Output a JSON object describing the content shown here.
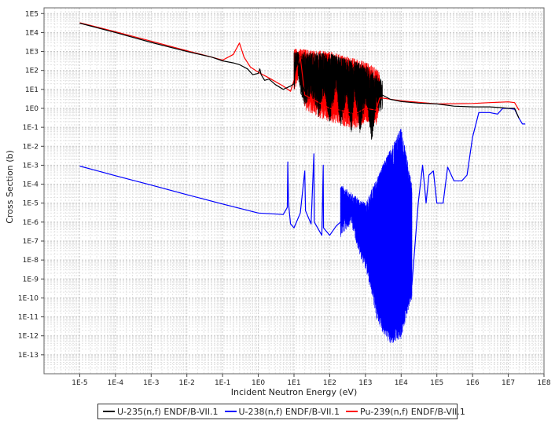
{
  "chart_data": {
    "type": "line",
    "title": "",
    "xlabel": "Incident Neutron Energy (eV)",
    "ylabel": "Cross Section (b)",
    "xscale": "log",
    "yscale": "log",
    "xlim": [
      1e-06,
      100000000.0
    ],
    "ylim": [
      1e-14,
      200000.0
    ],
    "x_ticks": [
      {
        "value": 1e-05,
        "label": "1E-5"
      },
      {
        "value": 0.0001,
        "label": "1E-4"
      },
      {
        "value": 0.001,
        "label": "1E-3"
      },
      {
        "value": 0.01,
        "label": "1E-2"
      },
      {
        "value": 0.1,
        "label": "1E-1"
      },
      {
        "value": 1.0,
        "label": "1E0"
      },
      {
        "value": 10.0,
        "label": "1E1"
      },
      {
        "value": 100.0,
        "label": "1E2"
      },
      {
        "value": 1000.0,
        "label": "1E3"
      },
      {
        "value": 10000.0,
        "label": "1E4"
      },
      {
        "value": 100000.0,
        "label": "1E5"
      },
      {
        "value": 1000000.0,
        "label": "1E6"
      },
      {
        "value": 10000000.0,
        "label": "1E7"
      },
      {
        "value": 100000000.0,
        "label": "1E8"
      }
    ],
    "y_ticks": [
      {
        "value": 100000.0,
        "label": "1E5"
      },
      {
        "value": 10000.0,
        "label": "1E4"
      },
      {
        "value": 1000.0,
        "label": "1E3"
      },
      {
        "value": 100.0,
        "label": "1E2"
      },
      {
        "value": 10.0,
        "label": "1E1"
      },
      {
        "value": 1.0,
        "label": "1E0"
      },
      {
        "value": 0.1,
        "label": "1E-1"
      },
      {
        "value": 0.01,
        "label": "1E-2"
      },
      {
        "value": 0.001,
        "label": "1E-3"
      },
      {
        "value": 0.0001,
        "label": "1E-4"
      },
      {
        "value": 1e-05,
        "label": "1E-5"
      },
      {
        "value": 1e-06,
        "label": "1E-6"
      },
      {
        "value": 1e-07,
        "label": "1E-7"
      },
      {
        "value": 1e-08,
        "label": "1E-8"
      },
      {
        "value": 1e-09,
        "label": "1E-9"
      },
      {
        "value": 1e-10,
        "label": "1E-10"
      },
      {
        "value": 1e-11,
        "label": "1E-11"
      },
      {
        "value": 1e-12,
        "label": "1E-12"
      },
      {
        "value": 1e-13,
        "label": "1E-13"
      }
    ],
    "grid": true,
    "legend_position": "bottom",
    "series": [
      {
        "name": "U-235(n,f) ENDF/B-VII.1",
        "color": "#000000",
        "points": [
          [
            1e-05,
            31000.0
          ],
          [
            0.0001,
            10000.0
          ],
          [
            0.001,
            3000.0
          ],
          [
            0.01,
            1000.0
          ],
          [
            0.05,
            500
          ],
          [
            0.1,
            320
          ],
          [
            0.2,
            250
          ],
          [
            0.3,
            200
          ],
          [
            0.5,
            120
          ],
          [
            0.7,
            60
          ],
          [
            1.0,
            70
          ],
          [
            1.1,
            120
          ],
          [
            1.2,
            60
          ],
          [
            1.5,
            30
          ],
          [
            2,
            35
          ],
          [
            3,
            18
          ],
          [
            5,
            10
          ],
          [
            8,
            15
          ],
          [
            10,
            20
          ],
          [
            12,
            800
          ],
          [
            15,
            40
          ],
          [
            20,
            8
          ],
          [
            30,
            30
          ],
          [
            50,
            2
          ],
          [
            70,
            40
          ],
          [
            100,
            1
          ],
          [
            150,
            50
          ],
          [
            200,
            0.5
          ],
          [
            300,
            20
          ],
          [
            400,
            0.2
          ],
          [
            500,
            30
          ],
          [
            700,
            0.3
          ],
          [
            1000,
            10
          ],
          [
            1500,
            0.1
          ],
          [
            2000,
            5
          ],
          [
            2500,
            4
          ],
          [
            3000,
            5
          ],
          [
            5000,
            3
          ],
          [
            10000.0,
            2.3
          ],
          [
            30000.0,
            1.9
          ],
          [
            100000.0,
            1.7
          ],
          [
            300000.0,
            1.3
          ],
          [
            1000000.0,
            1.2
          ],
          [
            3000000.0,
            1.2
          ],
          [
            6000000.0,
            1.1
          ],
          [
            10000000.0,
            1.0
          ],
          [
            15000000.0,
            1.0
          ],
          [
            20000000.0,
            0.3
          ]
        ],
        "band_x": [
          10,
          3000
        ],
        "band_envelope": [
          [
            10,
            1000
          ],
          [
            100,
            800
          ],
          [
            1000,
            200
          ],
          [
            3000,
            30
          ]
        ]
      },
      {
        "name": "U-238(n,f) ENDF/B-VII.1",
        "color": "#0000ff",
        "points": [
          [
            1e-05,
            0.0009
          ],
          [
            0.0001,
            0.00028
          ],
          [
            0.001,
            9e-05
          ],
          [
            0.01,
            2.8e-05
          ],
          [
            0.1,
            9e-06
          ],
          [
            1,
            3e-06
          ],
          [
            5,
            2.5e-06
          ],
          [
            6.5,
            6e-06
          ],
          [
            6.7,
            0.0015
          ],
          [
            7,
            1e-05
          ],
          [
            8,
            8e-07
          ],
          [
            10,
            5e-07
          ],
          [
            15,
            3e-06
          ],
          [
            20,
            0.0005
          ],
          [
            21,
            4e-06
          ],
          [
            30,
            8e-07
          ],
          [
            36,
            0.004
          ],
          [
            37,
            1e-06
          ],
          [
            60,
            2e-07
          ],
          [
            66,
            0.001
          ],
          [
            67,
            5e-07
          ],
          [
            100,
            2e-07
          ],
          [
            150,
            6e-07
          ],
          [
            200,
            1e-06
          ],
          [
            400,
            5e-06
          ],
          [
            700,
            1e-07
          ],
          [
            1000,
            2e-08
          ],
          [
            1500,
            1e-09
          ],
          [
            2000,
            5e-11
          ],
          [
            3000,
            1e-11
          ],
          [
            5000,
            2e-12
          ],
          [
            10000.0,
            4e-12
          ],
          [
            15000.0,
            1e-10
          ],
          [
            20000.0,
            5e-10
          ],
          [
            30000.0,
            1e-05
          ],
          [
            40000.0,
            0.001
          ],
          [
            50000.0,
            1e-05
          ],
          [
            60000.0,
            0.0003
          ],
          [
            80000.0,
            0.0005
          ],
          [
            100000.0,
            1e-05
          ],
          [
            150000.0,
            1e-05
          ],
          [
            200000.0,
            0.0008
          ],
          [
            300000.0,
            0.00015
          ],
          [
            500000.0,
            0.00015
          ],
          [
            700000.0,
            0.0003
          ],
          [
            1000000.0,
            0.03
          ],
          [
            1500000.0,
            0.6
          ],
          [
            3000000.0,
            0.6
          ],
          [
            5000000.0,
            0.5
          ],
          [
            7000000.0,
            1.0
          ],
          [
            10000000.0,
            1.0
          ],
          [
            15000000.0,
            0.9
          ],
          [
            20000000.0,
            0.3
          ],
          [
            25000000.0,
            0.15
          ],
          [
            30000000.0,
            0.15
          ]
        ],
        "band_x": [
          200,
          20000
        ],
        "band_envelope": [
          [
            200,
            0.0001
          ],
          [
            1000,
            1e-05
          ],
          [
            3000,
            0.001
          ],
          [
            10000.0,
            0.1
          ],
          [
            20000.0,
            0.0001
          ]
        ]
      },
      {
        "name": "Pu-239(n,f) ENDF/B-VII.1",
        "color": "#ff0000",
        "points": [
          [
            1e-05,
            33000.0
          ],
          [
            0.0001,
            11000.0
          ],
          [
            0.001,
            3500.0
          ],
          [
            0.01,
            1100.0
          ],
          [
            0.05,
            500
          ],
          [
            0.1,
            350
          ],
          [
            0.2,
            700
          ],
          [
            0.296,
            2800
          ],
          [
            0.4,
            500
          ],
          [
            0.6,
            150
          ],
          [
            1,
            80
          ],
          [
            2,
            40
          ],
          [
            5,
            15
          ],
          [
            8,
            8
          ],
          [
            10,
            30
          ],
          [
            15,
            500
          ],
          [
            20,
            5
          ],
          [
            50,
            2
          ],
          [
            100,
            1
          ],
          [
            200,
            0.8
          ],
          [
            500,
            0.5
          ],
          [
            1000,
            1
          ],
          [
            2000,
            0.8
          ],
          [
            2500,
            3.5
          ],
          [
            3000,
            3.5
          ],
          [
            10000.0,
            2.5
          ],
          [
            100000.0,
            1.7
          ],
          [
            1000000.0,
            1.8
          ],
          [
            3000000.0,
            2.0
          ],
          [
            10000000.0,
            2.2
          ],
          [
            15000000.0,
            2.0
          ],
          [
            20000000.0,
            0.8
          ]
        ],
        "band_x": [
          10,
          2500
        ],
        "band_envelope": [
          [
            10,
            1500
          ],
          [
            100,
            1000
          ],
          [
            1000,
            300
          ],
          [
            2500,
            100
          ]
        ]
      }
    ]
  }
}
